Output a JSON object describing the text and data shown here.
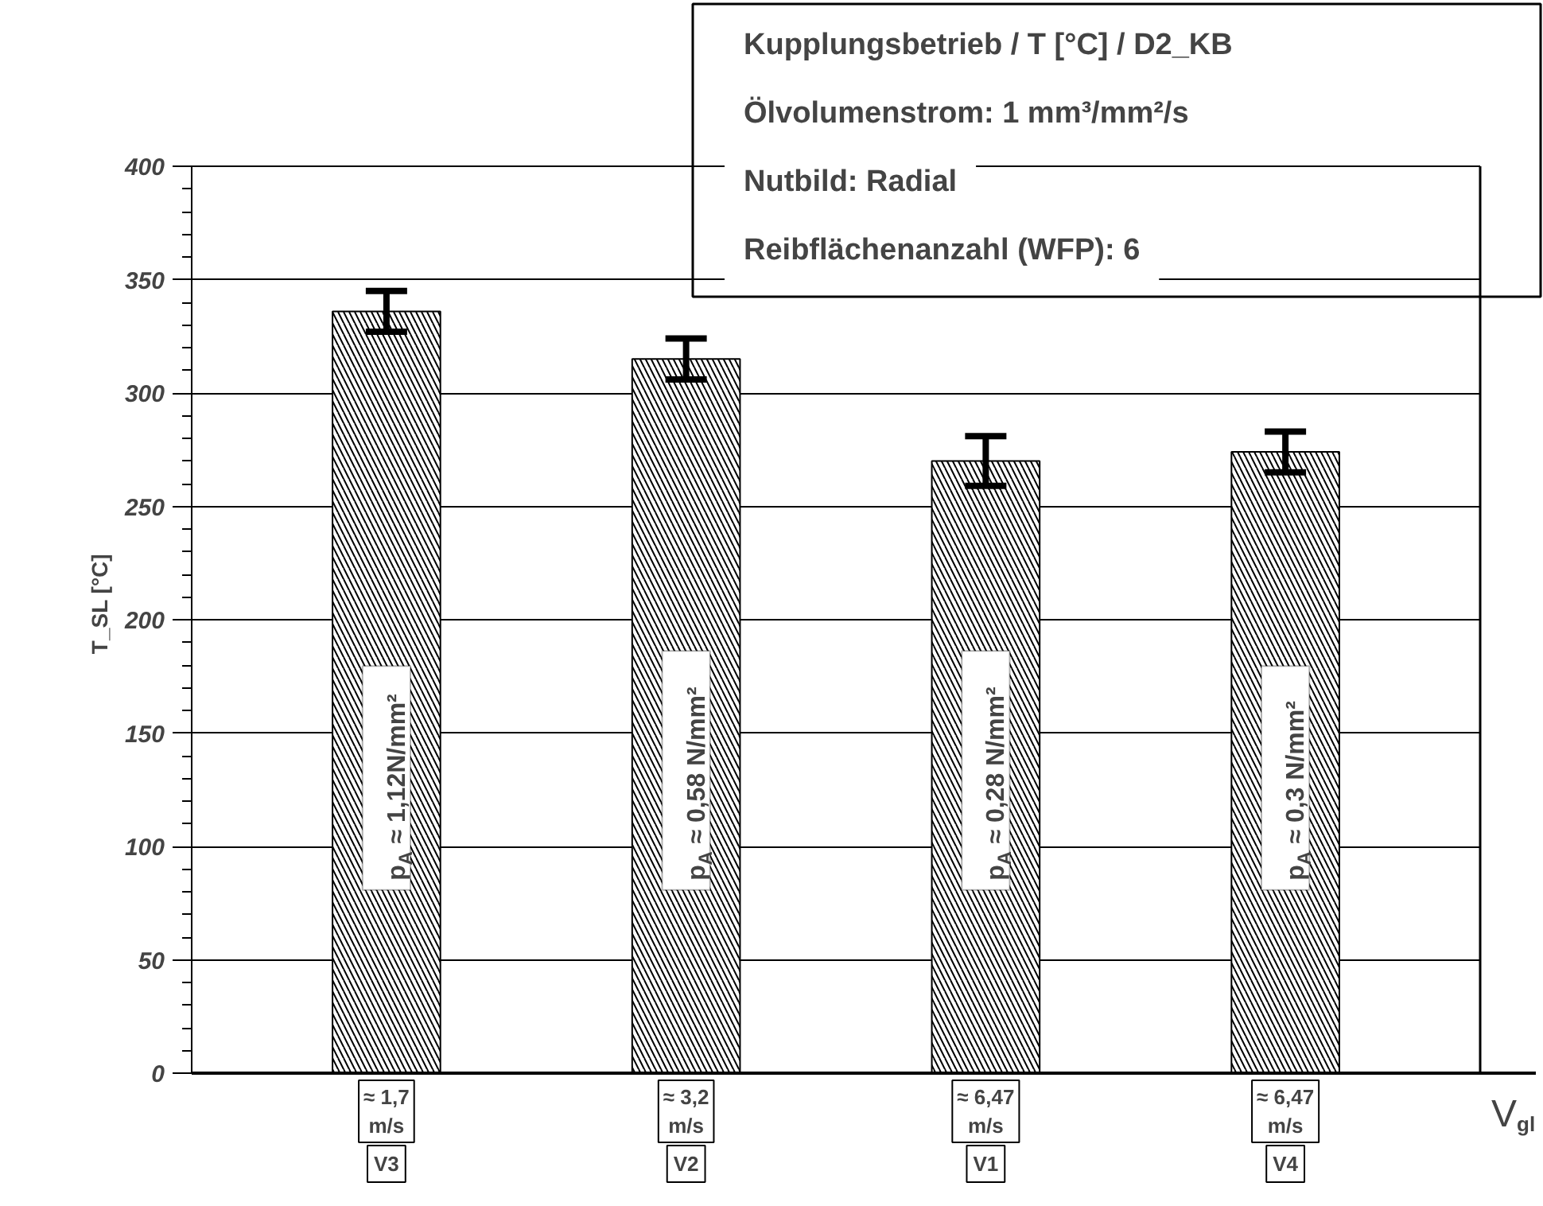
{
  "chart_data": {
    "type": "bar",
    "title": "Kupplungsbetrieb / T [°C] / D2_KB",
    "ylabel": "T_SL [°C]",
    "xlabel": "V$_{gl}$",
    "categories": [
      "V3",
      "V2",
      "V1",
      "V4"
    ],
    "values": [
      336,
      315,
      270,
      274
    ],
    "errors": [
      9,
      9,
      11,
      9
    ],
    "color": "#000000",
    "ylim": [
      0,
      400
    ],
    "yticks": [
      0,
      50,
      100,
      150,
      200,
      250,
      300,
      350,
      400
    ],
    "grid": "y",
    "annotations": [
      "Ölvolumenstrom: 1 mm³/mm²/s",
      "Nutbild: Radial",
      "Reibflächenanzahl (WFP): 6",
      "p$_{A}$ ≈ 1,12N/mm²",
      "p$_{A}$ ≈ 0,58 N/mm²",
      "p$_{A}$ ≈ 0,28 N/mm²",
      "p$_{A}$ ≈ 0,3 N/mm²",
      "≈ 1,7\nm/s",
      "≈ 3,2\nm/s",
      "≈ 6,47\nm/s",
      "≈ 6,47\nm/s"
    ]
  }
}
